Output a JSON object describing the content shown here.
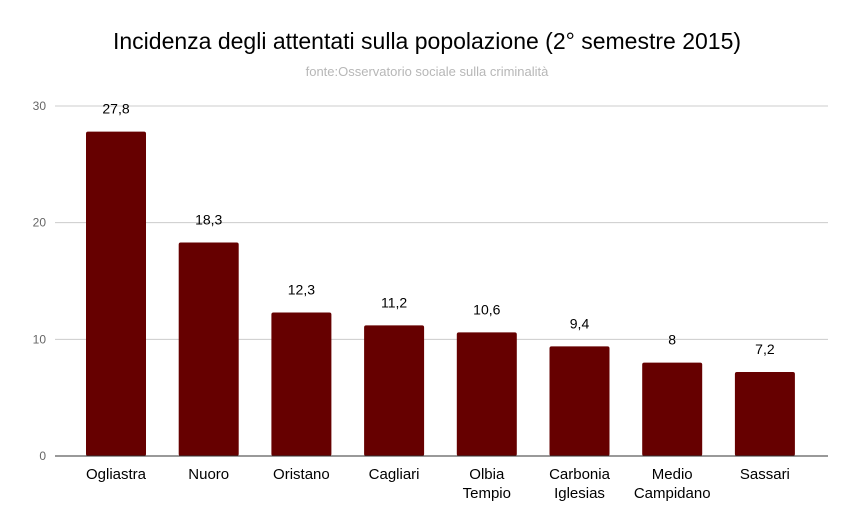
{
  "chart_data": {
    "type": "bar",
    "title": "Incidenza degli attentati sulla popolazione (2° semestre 2015)",
    "subtitle": "fonte:Osservatorio sociale sulla criminalità",
    "categories": [
      [
        "Ogliastra"
      ],
      [
        "Nuoro"
      ],
      [
        "Oristano"
      ],
      [
        "Cagliari"
      ],
      [
        "Olbia",
        "Tempio"
      ],
      [
        "Carbonia",
        "Iglesias"
      ],
      [
        "Medio",
        "Campidano"
      ],
      [
        "Sassari"
      ]
    ],
    "values": [
      27.8,
      18.3,
      12.3,
      11.2,
      10.6,
      9.4,
      8,
      7.2
    ],
    "data_labels": [
      "27,8",
      "18,3",
      "12,3",
      "11,2",
      "10,6",
      "9,4",
      "8",
      "7,2"
    ],
    "yticks": [
      "0",
      "10",
      "20",
      "30"
    ],
    "ylim": [
      0,
      30
    ],
    "grid": true,
    "legend": "none",
    "colors": {
      "bar": "#660000",
      "grid": "#cccccc",
      "axis": "#333333"
    }
  }
}
